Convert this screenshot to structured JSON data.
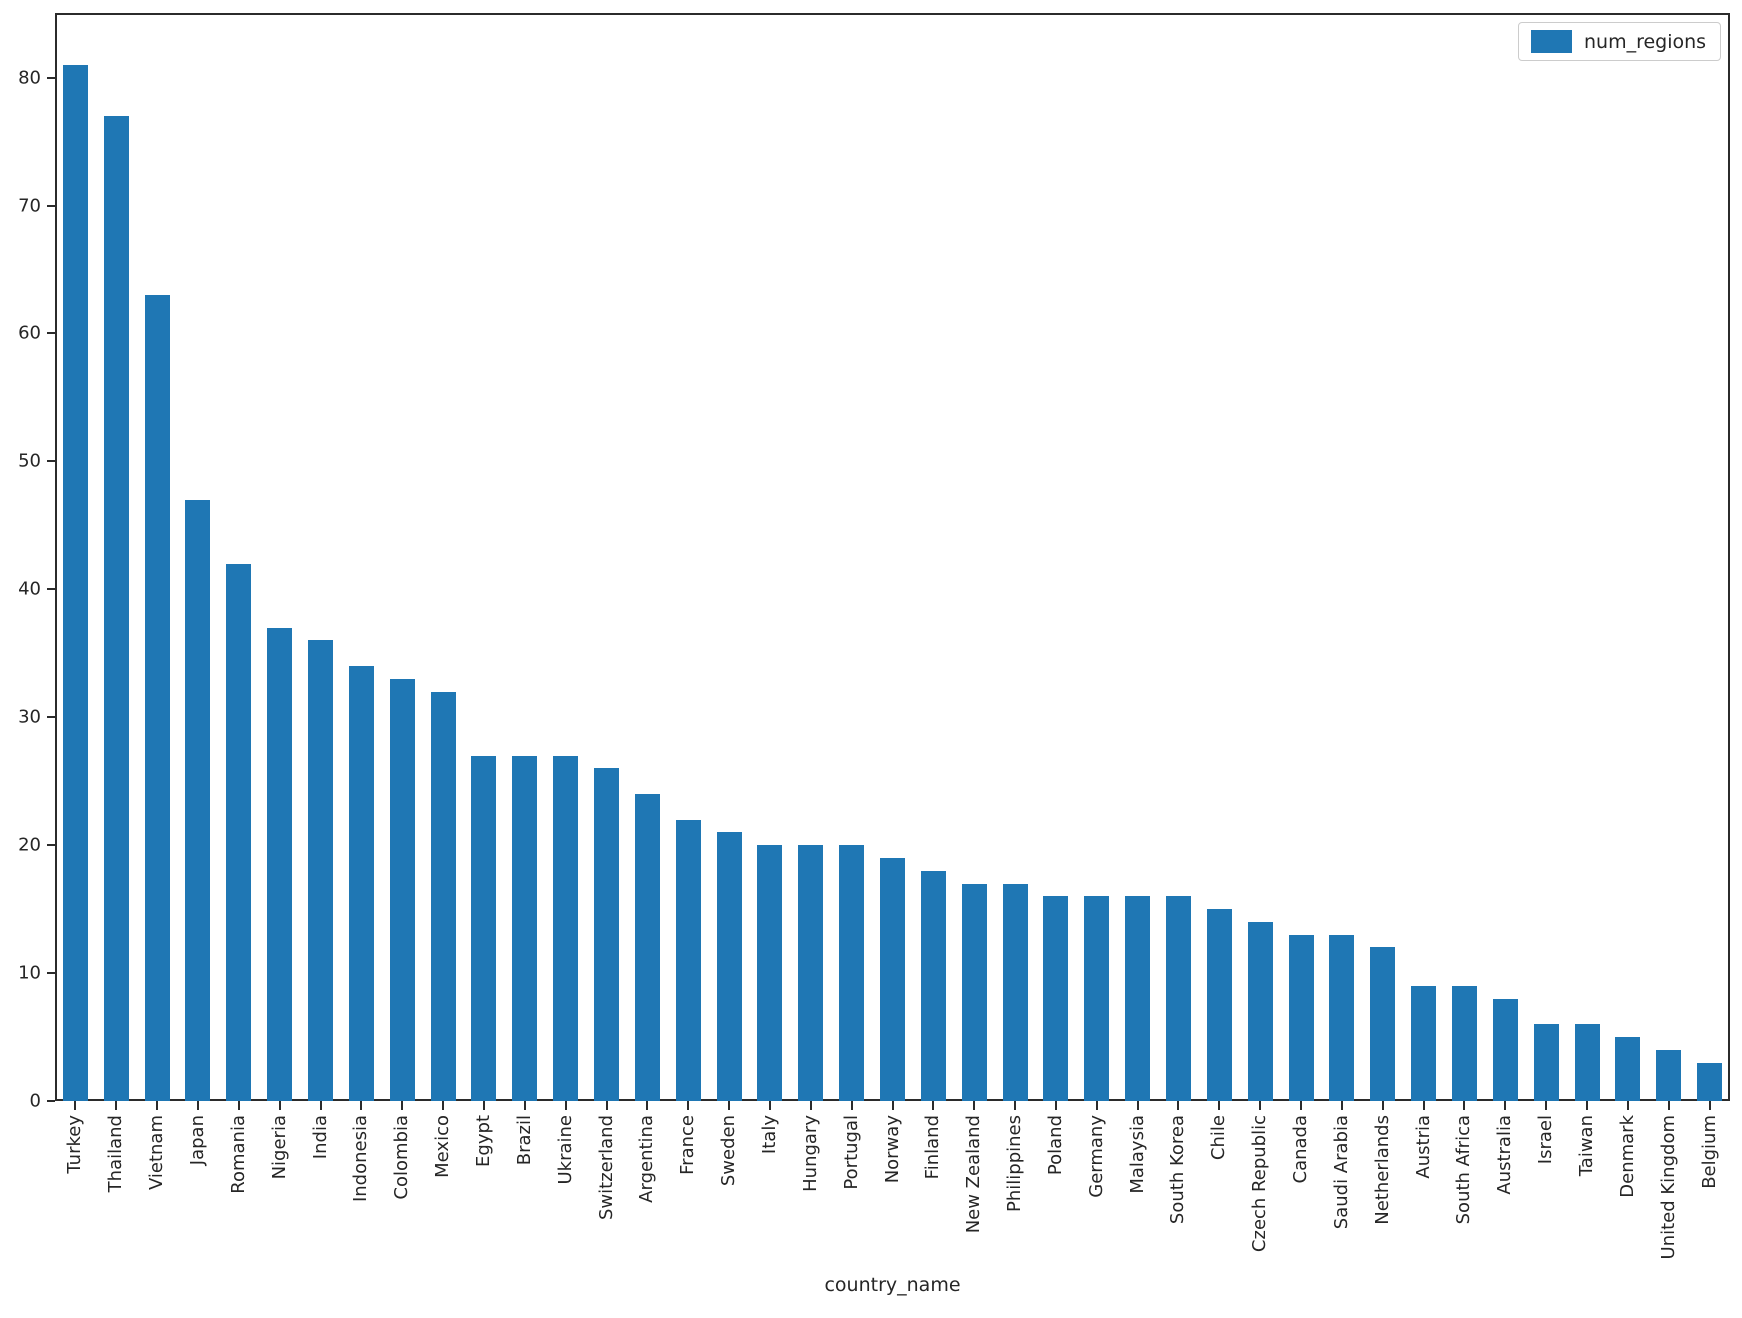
{
  "chart_data": {
    "type": "bar",
    "title": "",
    "xlabel": "country_name",
    "ylabel": "",
    "legend": [
      "num_regions"
    ],
    "legend_position": "upper right",
    "bar_color": "#1f77b4",
    "axis_color": "#2b2b2b",
    "ylim": [
      0,
      85.05
    ],
    "yticks": [
      0,
      10,
      20,
      30,
      40,
      50,
      60,
      70,
      80
    ],
    "grid": false,
    "categories": [
      "Turkey",
      "Thailand",
      "Vietnam",
      "Japan",
      "Romania",
      "Nigeria",
      "India",
      "Indonesia",
      "Colombia",
      "Mexico",
      "Egypt",
      "Brazil",
      "Ukraine",
      "Switzerland",
      "Argentina",
      "France",
      "Sweden",
      "Italy",
      "Hungary",
      "Portugal",
      "Norway",
      "Finland",
      "New Zealand",
      "Philippines",
      "Poland",
      "Germany",
      "Malaysia",
      "South Korea",
      "Chile",
      "Czech Republic",
      "Canada",
      "Saudi Arabia",
      "Netherlands",
      "Austria",
      "South Africa",
      "Australia",
      "Israel",
      "Taiwan",
      "Denmark",
      "United Kingdom",
      "Belgium"
    ],
    "values": [
      81,
      77,
      63,
      47,
      42,
      37,
      36,
      34,
      33,
      32,
      27,
      27,
      27,
      26,
      24,
      22,
      21,
      20,
      20,
      20,
      19,
      18,
      17,
      17,
      16,
      16,
      16,
      16,
      15,
      14,
      13,
      13,
      12,
      9,
      9,
      8,
      6,
      6,
      5,
      4,
      3
    ]
  }
}
